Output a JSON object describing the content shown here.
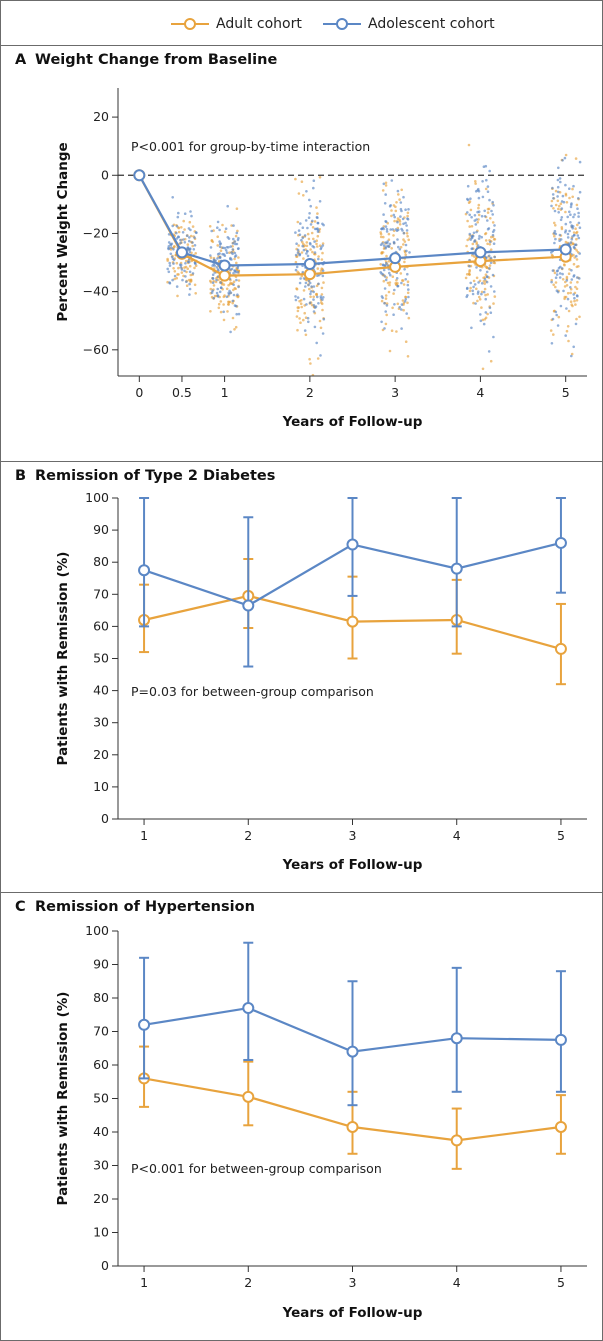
{
  "legend": {
    "adult": "Adult cohort",
    "adolescent": "Adolescent cohort"
  },
  "colors": {
    "adult": "#e8a33d",
    "adolescent": "#5b87c5",
    "axis": "#333333",
    "reference": "#333333"
  },
  "panels": {
    "a": {
      "letter": "A",
      "title": "Weight Change from Baseline"
    },
    "b": {
      "letter": "B",
      "title": "Remission of Type 2 Diabetes"
    },
    "c": {
      "letter": "C",
      "title": "Remission of Hypertension"
    }
  },
  "chart_data": [
    {
      "type": "line",
      "title": "Weight Change from Baseline",
      "xlabel": "Years of Follow-up",
      "ylabel": "Percent Weight Change",
      "annotation": "P<0.001 for group-by-time interaction",
      "x_ticks": [
        0,
        0.5,
        1,
        2,
        3,
        4,
        5
      ],
      "x_tick_labels": [
        "0",
        "0.5",
        "1",
        "2",
        "3",
        "4",
        "5"
      ],
      "y_ticks": [
        -60,
        -40,
        -20,
        0,
        20
      ],
      "y_tick_labels": [
        "−60",
        "−40",
        "−20",
        "0",
        "20"
      ],
      "xlim": [
        -0.25,
        5.25
      ],
      "ylim": [
        -69,
        30
      ],
      "reference_line_y": 0,
      "individual_points": "scattered individual patient values around each follow-up time for both cohorts",
      "series": [
        {
          "name": "Adult cohort",
          "x": [
            0,
            0.5,
            1,
            2,
            3,
            4,
            5
          ],
          "y": [
            0,
            -27,
            -34.5,
            -34,
            -31.5,
            -29.5,
            -28
          ]
        },
        {
          "name": "Adolescent cohort",
          "x": [
            0,
            0.5,
            1,
            2,
            3,
            4,
            5
          ],
          "y": [
            0,
            -26.5,
            -31,
            -30.5,
            -28.5,
            -26.5,
            -25.5
          ]
        }
      ]
    },
    {
      "type": "line",
      "title": "Remission of Type 2 Diabetes",
      "xlabel": "Years of Follow-up",
      "ylabel": "Patients with Remission (%)",
      "annotation": "P=0.03 for between-group comparison",
      "x_ticks": [
        1,
        2,
        3,
        4,
        5
      ],
      "x_tick_labels": [
        "1",
        "2",
        "3",
        "4",
        "5"
      ],
      "y_ticks": [
        0,
        10,
        20,
        30,
        40,
        50,
        60,
        70,
        80,
        90,
        100
      ],
      "y_tick_labels": [
        "0",
        "10",
        "20",
        "30",
        "40",
        "50",
        "60",
        "70",
        "80",
        "90",
        "100"
      ],
      "xlim": [
        0.75,
        5.25
      ],
      "ylim": [
        0,
        100
      ],
      "series": [
        {
          "name": "Adult cohort",
          "x": [
            1,
            2,
            3,
            4,
            5
          ],
          "y": [
            62,
            69.5,
            61.5,
            62,
            53
          ],
          "err_low": [
            52,
            59.5,
            50,
            51.5,
            42
          ],
          "err_high": [
            73,
            81,
            75.5,
            74.5,
            67
          ]
        },
        {
          "name": "Adolescent cohort",
          "x": [
            1,
            2,
            3,
            4,
            5
          ],
          "y": [
            77.5,
            66.5,
            85.5,
            78,
            86
          ],
          "err_low": [
            60,
            47.5,
            69.5,
            60,
            70.5
          ],
          "err_high": [
            100,
            94,
            100,
            100,
            100
          ]
        }
      ]
    },
    {
      "type": "line",
      "title": "Remission of Hypertension",
      "xlabel": "Years of Follow-up",
      "ylabel": "Patients with Remission (%)",
      "annotation": "P<0.001 for between-group comparison",
      "x_ticks": [
        1,
        2,
        3,
        4,
        5
      ],
      "x_tick_labels": [
        "1",
        "2",
        "3",
        "4",
        "5"
      ],
      "y_ticks": [
        0,
        10,
        20,
        30,
        40,
        50,
        60,
        70,
        80,
        90,
        100
      ],
      "y_tick_labels": [
        "0",
        "10",
        "20",
        "30",
        "40",
        "50",
        "60",
        "70",
        "80",
        "90",
        "100"
      ],
      "xlim": [
        0.75,
        5.25
      ],
      "ylim": [
        0,
        100
      ],
      "series": [
        {
          "name": "Adult cohort",
          "x": [
            1,
            2,
            3,
            4,
            5
          ],
          "y": [
            56,
            50.5,
            41.5,
            37.5,
            41.5
          ],
          "err_low": [
            47.5,
            42,
            33.5,
            29,
            33.5
          ],
          "err_high": [
            65.5,
            61,
            52,
            47,
            51
          ]
        },
        {
          "name": "Adolescent cohort",
          "x": [
            1,
            2,
            3,
            4,
            5
          ],
          "y": [
            72,
            77,
            64,
            68,
            67.5
          ],
          "err_low": [
            56,
            61.5,
            48,
            52,
            52
          ],
          "err_high": [
            92,
            96.5,
            85,
            89,
            88
          ]
        }
      ]
    }
  ]
}
